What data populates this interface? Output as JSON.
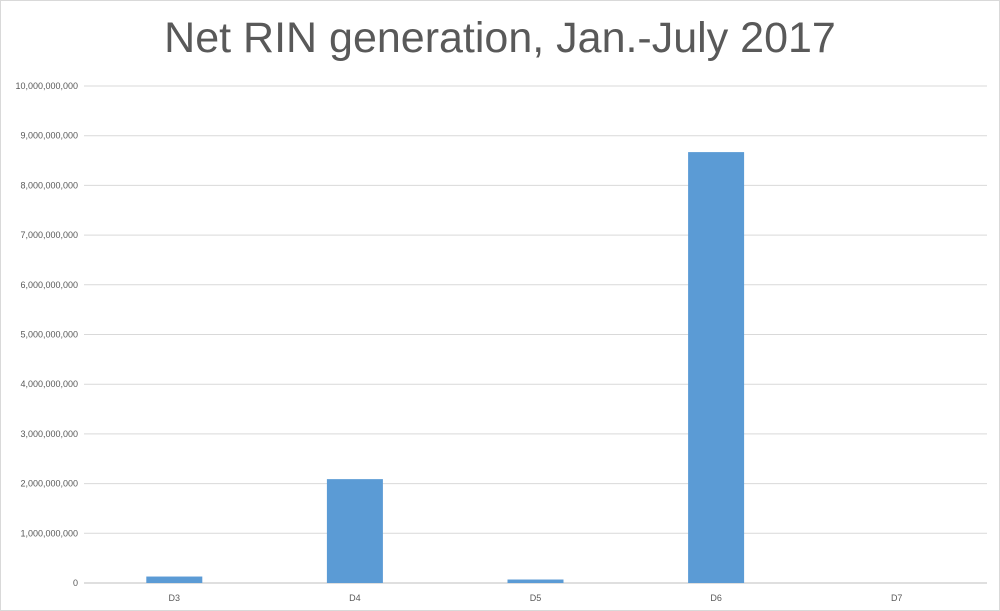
{
  "chart_data": {
    "type": "bar",
    "title": "Net RIN generation, Jan.-July 2017",
    "xlabel": "",
    "ylabel": "",
    "categories": [
      "D3",
      "D4",
      "D5",
      "D6",
      "D7"
    ],
    "values": [
      130000000,
      2090000000,
      70000000,
      8670000000,
      0
    ],
    "ylim": [
      0,
      10000000000
    ],
    "yticks": [
      "0",
      "1,000,000,000",
      "2,000,000,000",
      "3,000,000,000",
      "4,000,000,000",
      "5,000,000,000",
      "6,000,000,000",
      "7,000,000,000",
      "8,000,000,000",
      "9,000,000,000",
      "10,000,000,000"
    ],
    "grid": true,
    "legend": "none",
    "bar_color": "#5b9bd5"
  }
}
